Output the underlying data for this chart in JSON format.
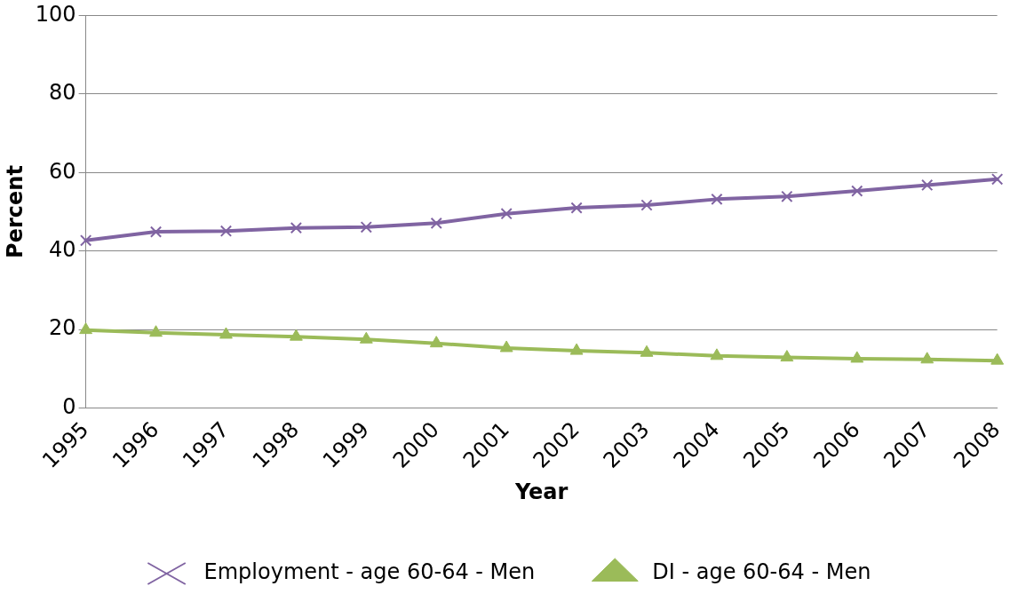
{
  "chart_data": {
    "type": "line",
    "xlabel": "Year",
    "ylabel": "Percent",
    "categories": [
      "1995",
      "1996",
      "1997",
      "1998",
      "1999",
      "2000",
      "2001",
      "2002",
      "2003",
      "2004",
      "2005",
      "2006",
      "2007",
      "2008"
    ],
    "series": [
      {
        "name": "Employment - age 60-64 - Men",
        "color": "#8064a2",
        "marker": "cross",
        "values": [
          42.7,
          44.9,
          45.1,
          45.9,
          46.1,
          47.1,
          49.5,
          51.0,
          51.7,
          53.2,
          53.9,
          55.3,
          56.8,
          58.3
        ]
      },
      {
        "name": "DI - age 60-64 - Men",
        "color": "#9bbb59",
        "marker": "triangle",
        "values": [
          19.9,
          19.2,
          18.7,
          18.2,
          17.5,
          16.5,
          15.3,
          14.6,
          14.1,
          13.3,
          12.9,
          12.6,
          12.4,
          12.1
        ]
      }
    ],
    "ylim": [
      0,
      100
    ],
    "yticks": [
      0,
      20,
      40,
      60,
      80,
      100
    ],
    "grid": "y",
    "legend": "bottom",
    "line_style": "solid"
  }
}
